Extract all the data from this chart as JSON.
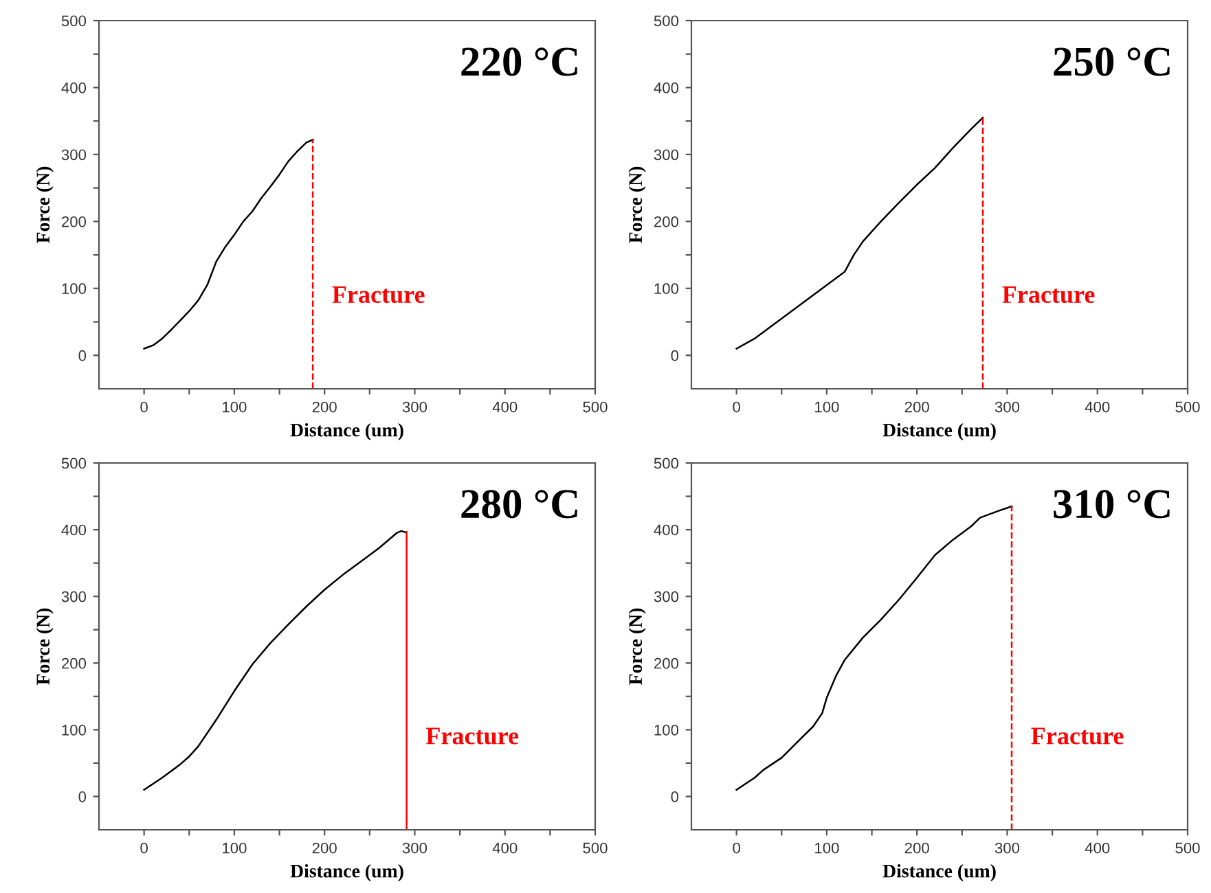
{
  "chart_data": [
    {
      "type": "line",
      "title": "220 °C",
      "xlabel": "Distance (um)",
      "ylabel": "Force (N)",
      "xlim": [
        -50,
        500
      ],
      "ylim": [
        -50,
        500
      ],
      "xticks": [
        0,
        {
          "value": 50,
          "label": null
        },
        100,
        {
          "value": 150,
          "label": null
        },
        200,
        {
          "value": 250,
          "label": null
        },
        300,
        {
          "value": 350,
          "label": null
        },
        400,
        {
          "value": 450,
          "label": null
        },
        500
      ],
      "yticks": [
        0,
        {
          "value": 50,
          "label": null
        },
        100,
        {
          "value": 150,
          "label": null
        },
        200,
        {
          "value": 250,
          "label": null
        },
        300,
        {
          "value": 350,
          "label": null
        },
        400,
        {
          "value": 450,
          "label": null
        },
        500
      ],
      "series": [
        {
          "color": "#000000",
          "x": [
            0,
            10,
            20,
            30,
            40,
            50,
            60,
            70,
            80,
            90,
            100,
            110,
            120,
            130,
            140,
            150,
            160,
            170,
            180,
            187
          ],
          "values": [
            10,
            15,
            25,
            38,
            52,
            66,
            82,
            105,
            140,
            162,
            180,
            200,
            215,
            235,
            252,
            270,
            290,
            305,
            318,
            322
          ]
        }
      ],
      "ref_lines": [
        {
          "axis": "x",
          "value": 187,
          "color": "#ff0000",
          "line_style": "dashed"
        }
      ],
      "annotations": [
        "Fracture"
      ],
      "grid": false,
      "legend": false,
      "marker": "none"
    },
    {
      "type": "line",
      "title": "250 °C",
      "xlabel": "Distance (um)",
      "ylabel": "Force (N)",
      "xlim": [
        -50,
        500
      ],
      "ylim": [
        -50,
        500
      ],
      "xticks": [
        0,
        {
          "value": 50,
          "label": null
        },
        100,
        {
          "value": 150,
          "label": null
        },
        200,
        {
          "value": 250,
          "label": null
        },
        300,
        {
          "value": 350,
          "label": null
        },
        400,
        {
          "value": 450,
          "label": null
        },
        500
      ],
      "yticks": [
        0,
        {
          "value": 50,
          "label": null
        },
        100,
        {
          "value": 150,
          "label": null
        },
        200,
        {
          "value": 250,
          "label": null
        },
        300,
        {
          "value": 350,
          "label": null
        },
        400,
        {
          "value": 450,
          "label": null
        },
        500
      ],
      "series": [
        {
          "color": "#000000",
          "x": [
            0,
            20,
            40,
            60,
            80,
            100,
            120,
            130,
            140,
            160,
            180,
            200,
            220,
            240,
            260,
            273
          ],
          "values": [
            10,
            25,
            45,
            65,
            85,
            105,
            125,
            150,
            170,
            200,
            228,
            255,
            280,
            310,
            338,
            355
          ]
        }
      ],
      "ref_lines": [
        {
          "axis": "x",
          "value": 273,
          "color": "#ff0000",
          "line_style": "dashed"
        }
      ],
      "annotations": [
        "Fracture"
      ],
      "grid": false,
      "legend": false,
      "marker": "none"
    },
    {
      "type": "line",
      "title": "280 °C",
      "xlabel": "Distance (um)",
      "ylabel": "Force (N)",
      "xlim": [
        -50,
        500
      ],
      "ylim": [
        -50,
        500
      ],
      "xticks": [
        0,
        {
          "value": 50,
          "label": null
        },
        100,
        {
          "value": 150,
          "label": null
        },
        200,
        {
          "value": 250,
          "label": null
        },
        300,
        {
          "value": 350,
          "label": null
        },
        400,
        {
          "value": 450,
          "label": null
        },
        500
      ],
      "yticks": [
        0,
        {
          "value": 50,
          "label": null
        },
        100,
        {
          "value": 150,
          "label": null
        },
        200,
        {
          "value": 250,
          "label": null
        },
        300,
        {
          "value": 350,
          "label": null
        },
        400,
        {
          "value": 450,
          "label": null
        },
        500
      ],
      "series": [
        {
          "color": "#000000",
          "x": [
            0,
            20,
            40,
            50,
            60,
            80,
            100,
            120,
            140,
            160,
            180,
            200,
            220,
            240,
            260,
            280,
            285,
            290
          ],
          "values": [
            10,
            28,
            48,
            60,
            75,
            115,
            158,
            198,
            230,
            258,
            285,
            310,
            332,
            352,
            372,
            395,
            398,
            396
          ]
        }
      ],
      "ref_lines": [
        {
          "axis": "x",
          "value": 291,
          "color": "#ff0000",
          "line_style": "solid"
        }
      ],
      "annotations": [
        "Fracture"
      ],
      "grid": false,
      "legend": false,
      "marker": "none"
    },
    {
      "type": "line",
      "title": "310 °C",
      "xlabel": "Distance (um)",
      "ylabel": "Force (N)",
      "xlim": [
        -50,
        500
      ],
      "ylim": [
        -50,
        500
      ],
      "xticks": [
        0,
        {
          "value": 50,
          "label": null
        },
        100,
        {
          "value": 150,
          "label": null
        },
        200,
        {
          "value": 250,
          "label": null
        },
        300,
        {
          "value": 350,
          "label": null
        },
        400,
        {
          "value": 450,
          "label": null
        },
        500
      ],
      "yticks": [
        0,
        {
          "value": 50,
          "label": null
        },
        100,
        {
          "value": 150,
          "label": null
        },
        200,
        {
          "value": 250,
          "label": null
        },
        300,
        {
          "value": 350,
          "label": null
        },
        400,
        {
          "value": 450,
          "label": null
        },
        500
      ],
      "series": [
        {
          "color": "#000000",
          "x": [
            0,
            20,
            30,
            50,
            70,
            85,
            95,
            100,
            110,
            120,
            140,
            160,
            180,
            200,
            220,
            240,
            260,
            270,
            290,
            305
          ],
          "values": [
            10,
            28,
            40,
            58,
            85,
            105,
            125,
            148,
            180,
            205,
            238,
            265,
            295,
            328,
            362,
            385,
            405,
            418,
            428,
            435
          ]
        }
      ],
      "ref_lines": [
        {
          "axis": "x",
          "value": 305,
          "color": "#ff0000",
          "line_style": "dashed"
        }
      ],
      "annotations": [
        "Fracture"
      ],
      "grid": false,
      "legend": false,
      "marker": "none"
    }
  ]
}
